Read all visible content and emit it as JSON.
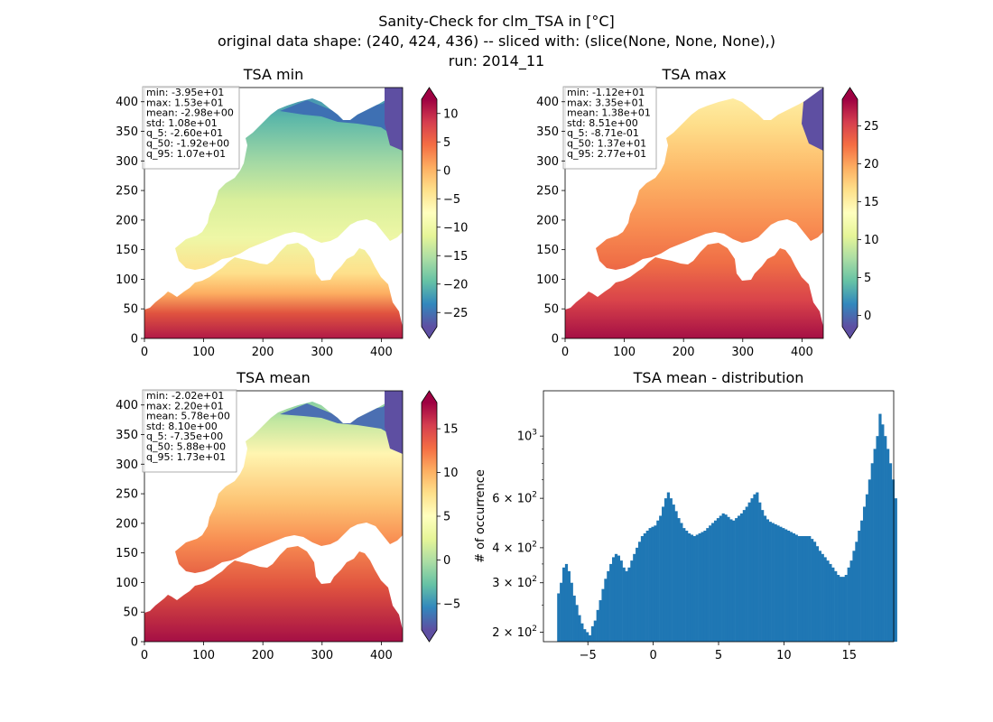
{
  "figure": {
    "title_lines": [
      "Sanity-Check for clm_TSA in [°C]",
      "original data shape: (240, 424, 436) -- sliced with: (slice(None, None, None),)",
      "run: 2014_11"
    ]
  },
  "colors": {
    "colormap": "Spectral_r",
    "hist_bar": "#1f77b4"
  },
  "chart_data": [
    {
      "type": "heatmap",
      "title": "TSA min",
      "xlim": [
        0,
        436
      ],
      "ylim": [
        0,
        424
      ],
      "xticks": [
        0,
        100,
        200,
        300,
        400
      ],
      "yticks": [
        0,
        50,
        100,
        150,
        200,
        250,
        300,
        350,
        400
      ],
      "colorbar": {
        "min": -27.5,
        "max": 12.5,
        "ticks": [
          10,
          5,
          0,
          -5,
          -10,
          -15,
          -20,
          -25
        ],
        "extend": "both"
      },
      "stats": [
        "min: -3.95e+01",
        "max: 1.53e+01",
        "mean: -2.98e+00",
        "std: 1.08e+01",
        "q_5: -2.60e+01",
        "q_50: -1.92e+00",
        "q_95: 1.07e+01"
      ]
    },
    {
      "type": "heatmap",
      "title": "TSA max",
      "xlim": [
        0,
        436
      ],
      "ylim": [
        0,
        424
      ],
      "xticks": [
        0,
        100,
        200,
        300,
        400
      ],
      "yticks": [
        0,
        50,
        100,
        150,
        200,
        250,
        300,
        350,
        400
      ],
      "colorbar": {
        "min": -1.5,
        "max": 28.5,
        "ticks": [
          25,
          20,
          15,
          10,
          5,
          0
        ],
        "extend": "both"
      },
      "stats": [
        "min: -1.12e+01",
        "max: 3.35e+01",
        "mean: 1.38e+01",
        "std: 8.51e+00",
        "q_5: -8.71e-01",
        "q_50: 1.37e+01",
        "q_95: 2.77e+01"
      ]
    },
    {
      "type": "heatmap",
      "title": "TSA mean",
      "xlim": [
        0,
        436
      ],
      "ylim": [
        0,
        424
      ],
      "xticks": [
        0,
        100,
        200,
        300,
        400
      ],
      "yticks": [
        0,
        50,
        100,
        150,
        200,
        250,
        300,
        350,
        400
      ],
      "colorbar": {
        "min": -8,
        "max": 18,
        "ticks": [
          15,
          10,
          5,
          0,
          -5
        ],
        "extend": "both"
      },
      "stats": [
        "min: -2.02e+01",
        "max: 2.20e+01",
        "mean: 5.78e+00",
        "std: 8.10e+00",
        "q_5: -7.35e+00",
        "q_50: 5.88e+00",
        "q_95: 1.73e+01"
      ]
    },
    {
      "type": "bar",
      "title": "TSA mean - distribution",
      "ylabel": "# of occurrence",
      "yscale": "log",
      "xlim": [
        -8.4,
        18.4
      ],
      "ylim": [
        185,
        1450
      ],
      "xticks": [
        -5,
        0,
        5,
        10,
        15
      ],
      "xtick_labels": [
        "−5",
        "0",
        "5",
        "10",
        "15"
      ],
      "yticks": [
        {
          "value": 200,
          "base": "2 × 10",
          "exp": "2"
        },
        {
          "value": 300,
          "base": "3 × 10",
          "exp": "2"
        },
        {
          "value": 400,
          "base": "4 × 10",
          "exp": "2"
        },
        {
          "value": 600,
          "base": "6 × 10",
          "exp": "2"
        },
        {
          "value": 1000,
          "base": "10",
          "exp": "3"
        }
      ],
      "bin_start": -7.35,
      "bin_width": 0.2,
      "counts": [
        275,
        300,
        340,
        350,
        330,
        300,
        270,
        250,
        230,
        215,
        205,
        200,
        195,
        210,
        220,
        240,
        260,
        285,
        310,
        330,
        350,
        370,
        380,
        375,
        360,
        340,
        330,
        340,
        360,
        380,
        400,
        420,
        440,
        450,
        460,
        470,
        475,
        480,
        500,
        520,
        560,
        600,
        630,
        600,
        570,
        540,
        510,
        490,
        470,
        460,
        450,
        445,
        440,
        445,
        450,
        455,
        460,
        470,
        480,
        490,
        500,
        510,
        520,
        530,
        525,
        515,
        505,
        500,
        510,
        520,
        530,
        545,
        560,
        580,
        600,
        620,
        630,
        580,
        545,
        520,
        505,
        495,
        490,
        485,
        480,
        475,
        470,
        465,
        460,
        455,
        450,
        445,
        440,
        440,
        440,
        440,
        440,
        430,
        420,
        405,
        390,
        380,
        370,
        360,
        350,
        340,
        330,
        320,
        315,
        315,
        320,
        340,
        360,
        390,
        420,
        460,
        500,
        560,
        620,
        700,
        800,
        900,
        1000,
        1200,
        1100,
        1000,
        900,
        800,
        700,
        600
      ]
    }
  ]
}
